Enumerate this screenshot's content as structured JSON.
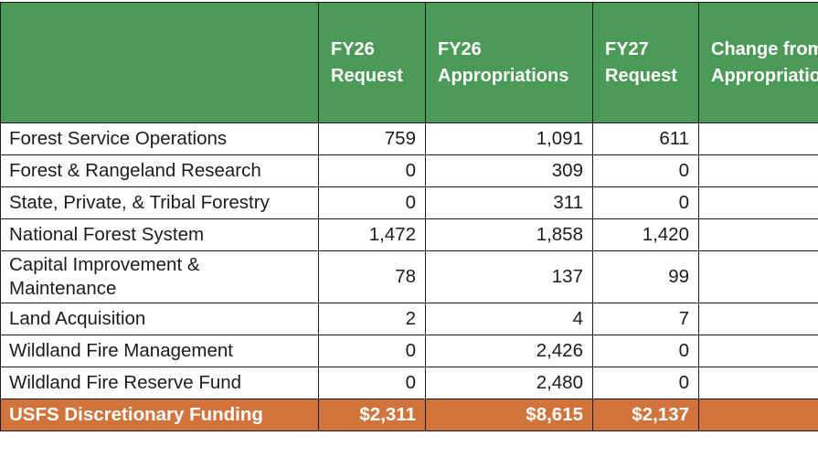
{
  "table": {
    "headers": [
      {
        "line1": "",
        "line2": ""
      },
      {
        "line1": "FY26",
        "line2": "Request"
      },
      {
        "line1": "FY26",
        "line2": "Appropriations"
      },
      {
        "line1": "FY27",
        "line2": "Request"
      },
      {
        "line1": "Change from",
        "line2": "Appropriations"
      }
    ],
    "rows": [
      {
        "label": "Forest Service Operations",
        "fy26_request": "759",
        "fy26_appropriations": "1,091",
        "fy27_request": "611",
        "change": ""
      },
      {
        "label": "Forest & Rangeland Research",
        "fy26_request": "0",
        "fy26_appropriations": "309",
        "fy27_request": "0",
        "change": ""
      },
      {
        "label": "State, Private, & Tribal Forestry",
        "fy26_request": "0",
        "fy26_appropriations": "311",
        "fy27_request": "0",
        "change": ""
      },
      {
        "label": "National Forest System",
        "fy26_request": "1,472",
        "fy26_appropriations": "1,858",
        "fy27_request": "1,420",
        "change": ""
      },
      {
        "label_line1": "Capital Improvement &",
        "label_line2": "Maintenance",
        "fy26_request": "78",
        "fy26_appropriations": "137",
        "fy27_request": "99",
        "change": ""
      },
      {
        "label": "Land Acquisition",
        "fy26_request": "2",
        "fy26_appropriations": "4",
        "fy27_request": "7",
        "change": ""
      },
      {
        "label": "Wildland Fire Management",
        "fy26_request": "0",
        "fy26_appropriations": "2,426",
        "fy27_request": "0",
        "change": ""
      },
      {
        "label": "Wildland Fire Reserve Fund",
        "fy26_request": "0",
        "fy26_appropriations": "2,480",
        "fy27_request": "0",
        "change": ""
      }
    ],
    "total": {
      "label": "USFS Discretionary Funding",
      "fy26_request": "$2,311",
      "fy26_appropriations": "$8,615",
      "fy27_request": "$2,137",
      "change": ""
    }
  },
  "colors": {
    "header_green": "#4c9a57",
    "total_orange": "#d1743c",
    "border": "#1a1a1a"
  }
}
